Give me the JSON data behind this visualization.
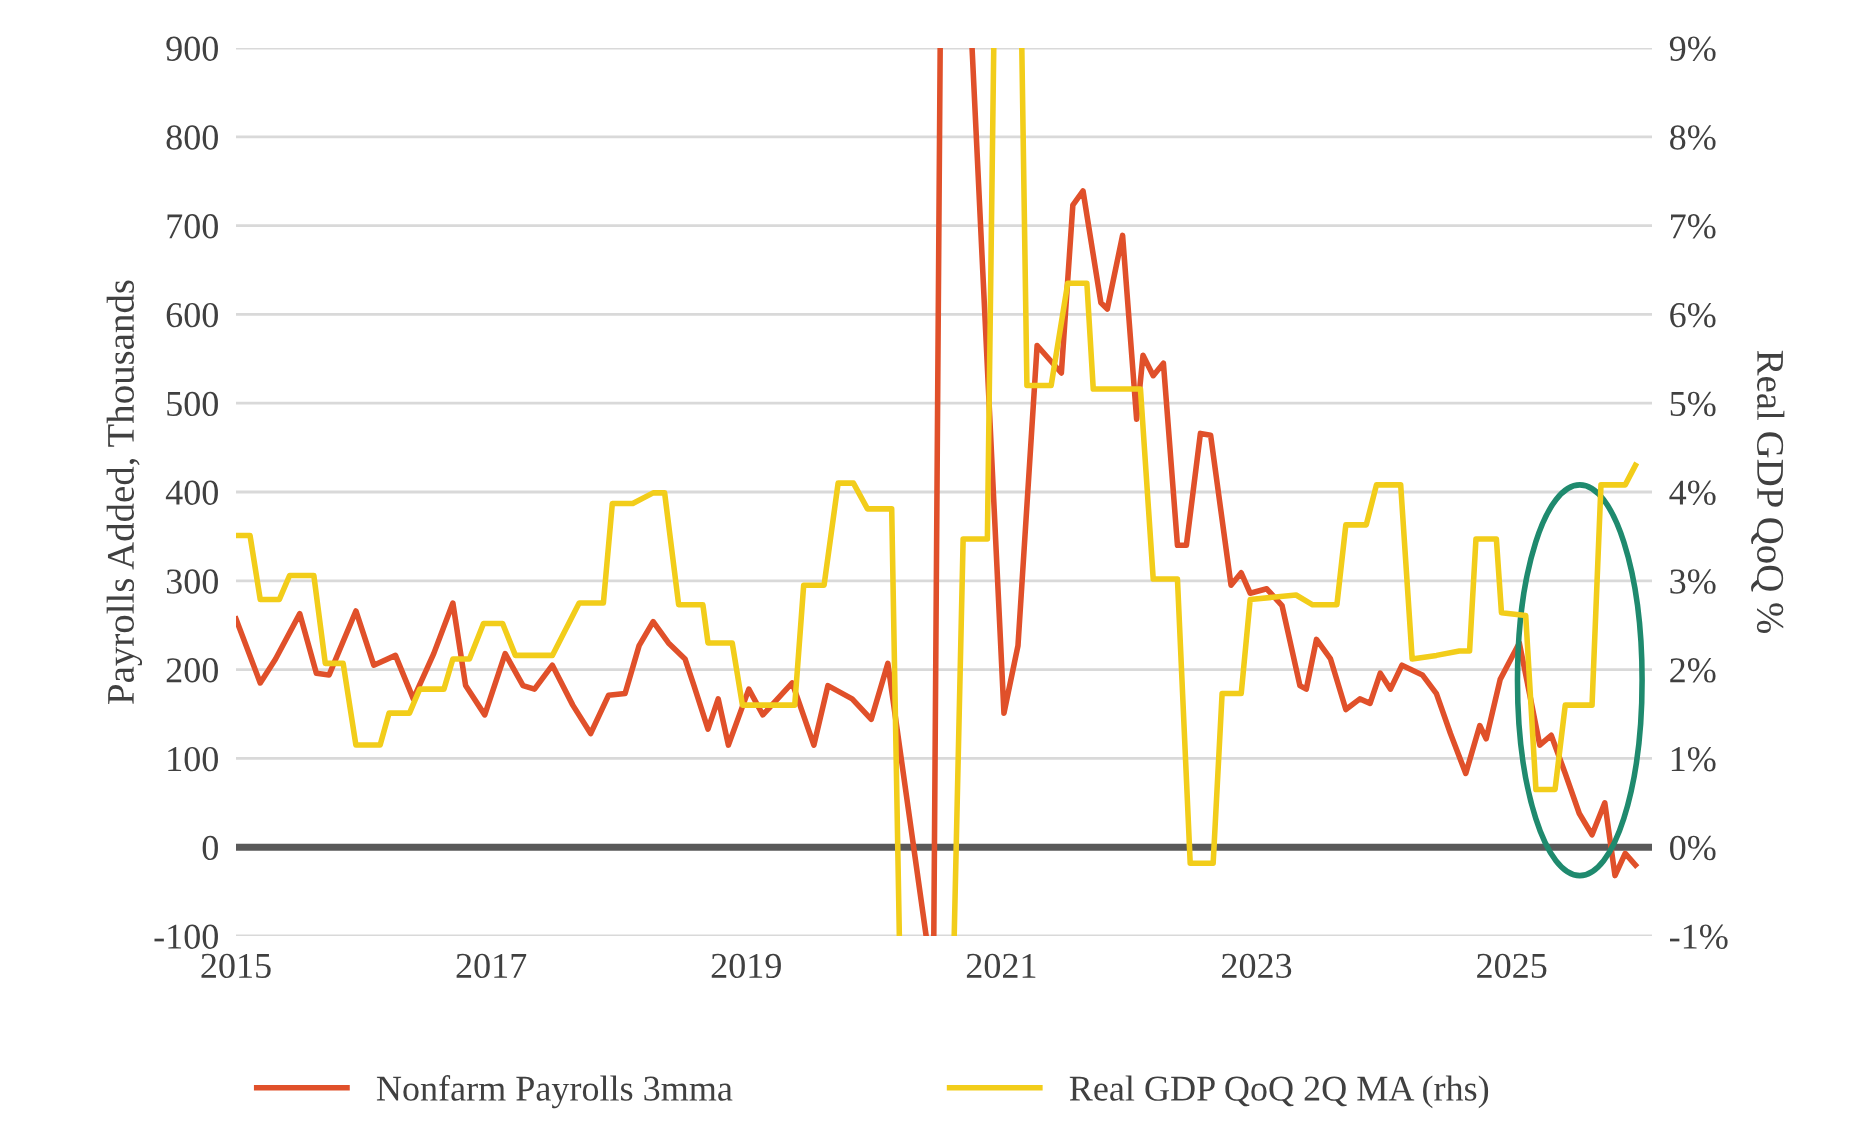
{
  "chart_data": {
    "type": "line",
    "xlabel": null,
    "ylabel": "Payrolls Added, Thousands",
    "y2label": "Real GDP QoQ %",
    "xlim": [
      2015,
      2026.1
    ],
    "xticks": [
      2015,
      2017,
      2019,
      2021,
      2023,
      2025
    ],
    "ylim": [
      -100,
      900
    ],
    "yticks": [
      -100,
      0,
      100,
      200,
      300,
      400,
      500,
      600,
      700,
      800,
      900
    ],
    "y2lim": [
      -1,
      9
    ],
    "y2ticks": [
      {
        "value": -1,
        "label": "-1%"
      },
      {
        "value": 0,
        "label": "0%"
      },
      {
        "value": 1,
        "label": "1%"
      },
      {
        "value": 2,
        "label": "2%"
      },
      {
        "value": 3,
        "label": "3%"
      },
      {
        "value": 4,
        "label": "4%"
      },
      {
        "value": 5,
        "label": "5%"
      },
      {
        "value": 6,
        "label": "6%"
      },
      {
        "value": 7,
        "label": "7%"
      },
      {
        "value": 8,
        "label": "8%"
      },
      {
        "value": 9,
        "label": "9%"
      }
    ],
    "grid": "y",
    "legend": "bottom",
    "line_style": "solid",
    "marker": "none",
    "ref_lines": [
      {
        "axis": "y",
        "value": 0,
        "label": null,
        "color": "#595959"
      }
    ],
    "series": [
      {
        "name": "Nonfarm Payrolls 3mma",
        "color": "#e0502a",
        "axis": "y",
        "x": [
          2015.0,
          2015.19,
          2015.31,
          2015.5,
          2015.63,
          2015.73,
          2015.94,
          2016.08,
          2016.25,
          2016.39,
          2016.55,
          2016.7,
          2016.8,
          2016.95,
          2017.11,
          2017.25,
          2017.34,
          2017.48,
          2017.64,
          2017.78,
          2017.92,
          2018.05,
          2018.16,
          2018.27,
          2018.39,
          2018.52,
          2018.59,
          2018.7,
          2018.78,
          2018.86,
          2019.02,
          2019.13,
          2019.36,
          2019.53,
          2019.64,
          2019.83,
          2019.98,
          2020.11,
          2020.41,
          2020.44,
          2020.47,
          2020.52,
          2020.66,
          2020.77,
          2021.02,
          2021.13,
          2021.28,
          2021.47,
          2021.56,
          2021.64,
          2021.78,
          2021.83,
          2021.95,
          2022.06,
          2022.11,
          2022.19,
          2022.27,
          2022.38,
          2022.45,
          2022.56,
          2022.64,
          2022.8,
          2022.88,
          2022.95,
          2023.08,
          2023.2,
          2023.34,
          2023.39,
          2023.47,
          2023.58,
          2023.7,
          2023.81,
          2023.89,
          2023.97,
          2024.05,
          2024.14,
          2024.3,
          2024.41,
          2024.52,
          2024.64,
          2024.75,
          2024.8,
          2024.91,
          2025.06,
          2025.14,
          2025.22,
          2025.31,
          2025.42,
          2025.53,
          2025.63,
          2025.73,
          2025.81,
          2025.89,
          2025.97
        ],
        "values": [
          257,
          185,
          212,
          263,
          196,
          194,
          266,
          205,
          216,
          167,
          218,
          275,
          182,
          149,
          218,
          182,
          178,
          205,
          160,
          128,
          171,
          173,
          227,
          254,
          230,
          212,
          182,
          133,
          167,
          115,
          178,
          149,
          185,
          115,
          182,
          167,
          144,
          207,
          -100,
          null,
          -100,
          900,
          null,
          900,
          151,
          227,
          565,
          534,
          723,
          739,
          613,
          606,
          689,
          482,
          554,
          531,
          545,
          340,
          340,
          466,
          464,
          295,
          309,
          286,
          291,
          272,
          182,
          178,
          234,
          212,
          155,
          167,
          162,
          196,
          178,
          205,
          194,
          173,
          128,
          83,
          137,
          122,
          189,
          230,
          173,
          115,
          126,
          83,
          38,
          14,
          50,
          -32,
          -7,
          -20
        ]
      },
      {
        "name": "Real GDP QoQ 2Q MA (rhs)",
        "color": "#f2cd1a",
        "axis": "y2",
        "x": [
          2015.0,
          2015.11,
          2015.19,
          2015.34,
          2015.42,
          2015.61,
          2015.7,
          2015.84,
          2015.94,
          2016.13,
          2016.2,
          2016.36,
          2016.44,
          2016.63,
          2016.7,
          2016.83,
          2016.94,
          2017.09,
          2017.19,
          2017.48,
          2017.69,
          2017.88,
          2017.95,
          2018.11,
          2018.27,
          2018.36,
          2018.47,
          2018.66,
          2018.7,
          2018.89,
          2018.97,
          2019.38,
          2019.45,
          2019.61,
          2019.72,
          2019.84,
          2019.95,
          2020.14,
          2020.2,
          2020.34,
          2020.63,
          2020.7,
          2020.89,
          2020.94,
          2021.05,
          2021.16,
          2021.2,
          2021.39,
          2021.52,
          2021.67,
          2021.72,
          2022.09,
          2022.19,
          2022.38,
          2022.48,
          2022.66,
          2022.73,
          2022.88,
          2022.95,
          2023.31,
          2023.44,
          2023.63,
          2023.7,
          2023.86,
          2023.94,
          2024.13,
          2024.22,
          2024.41,
          2024.59,
          2024.67,
          2024.72,
          2024.88,
          2024.92,
          2025.11,
          2025.19,
          2025.34,
          2025.42,
          2025.63,
          2025.7,
          2025.89,
          2025.97
        ],
        "values": [
          3.51,
          3.51,
          2.79,
          2.79,
          3.06,
          3.06,
          2.07,
          2.07,
          1.15,
          1.15,
          1.51,
          1.51,
          1.78,
          1.78,
          2.12,
          2.12,
          2.52,
          2.52,
          2.16,
          2.16,
          2.75,
          2.75,
          3.87,
          3.87,
          3.99,
          3.99,
          2.73,
          2.73,
          2.3,
          2.3,
          1.6,
          1.6,
          2.95,
          2.95,
          4.1,
          4.1,
          3.81,
          3.81,
          -1,
          null,
          -1,
          3.47,
          3.47,
          9,
          null,
          9,
          5.2,
          5.2,
          6.35,
          6.35,
          5.16,
          5.16,
          3.02,
          3.02,
          -0.18,
          -0.18,
          1.73,
          1.73,
          2.79,
          2.84,
          2.73,
          2.73,
          3.63,
          3.63,
          4.08,
          4.08,
          2.12,
          2.16,
          2.21,
          2.21,
          3.47,
          3.47,
          2.64,
          2.61,
          0.65,
          0.65,
          1.6,
          1.6,
          4.08,
          4.08,
          4.3
        ]
      }
    ]
  }
}
